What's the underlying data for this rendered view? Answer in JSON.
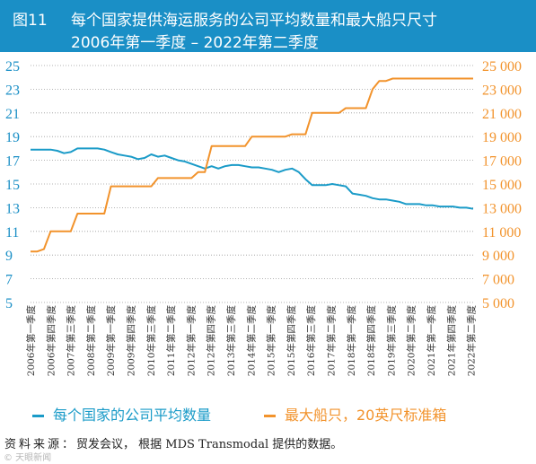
{
  "header": {
    "figure_label": "图11",
    "title_line1": "每个国家提供海运服务的公司平均数量和最大船只尺寸",
    "title_line2": "2006年第一季度 – 2022年第二季度",
    "bg_color": "#1a8fc6"
  },
  "chart_data": {
    "type": "line",
    "categories": [
      "2006年第一季度",
      "2006年第四季度",
      "2007年第三季度",
      "2008年第二季度",
      "2009年第一季度",
      "2009年第四季度",
      "2010年第三季度",
      "2011年第二季度",
      "2012年第一季度",
      "2012年第四季度",
      "2013年第三季度",
      "2014年第二季度",
      "2015年第一季度",
      "2015年第四季度",
      "2016年第三季度",
      "2017年第二季度",
      "2018年第一季度",
      "2018年第四季度",
      "2019年第三季度",
      "2020年第二季度",
      "2021年第一季度",
      "2021年第四季度",
      "2022年第二季度"
    ],
    "x": [
      0,
      1,
      2,
      3,
      4,
      5,
      6,
      7,
      8,
      9,
      10,
      11,
      12,
      13,
      14,
      15,
      16,
      17,
      18,
      19,
      20,
      21,
      22,
      23,
      24,
      25,
      26,
      27,
      28,
      29,
      30,
      31,
      32,
      33,
      34,
      35,
      36,
      37,
      38,
      39,
      40,
      41,
      42,
      43,
      44,
      45,
      46,
      47,
      48,
      49,
      50,
      51,
      52,
      53,
      54,
      55,
      56,
      57,
      58,
      59,
      60,
      61,
      62,
      63,
      64,
      65,
      66
    ],
    "series": [
      {
        "name": "每个国家的公司平均数量",
        "axis": "left",
        "color": "#1a9bc8",
        "values": [
          17.9,
          17.9,
          17.9,
          17.9,
          17.8,
          17.6,
          17.7,
          18.0,
          18.0,
          18.0,
          18.0,
          17.9,
          17.7,
          17.5,
          17.4,
          17.3,
          17.1,
          17.2,
          17.5,
          17.3,
          17.4,
          17.2,
          17.0,
          16.9,
          16.7,
          16.5,
          16.3,
          16.5,
          16.3,
          16.5,
          16.6,
          16.6,
          16.5,
          16.4,
          16.4,
          16.3,
          16.2,
          16.0,
          16.2,
          16.3,
          16.0,
          15.4,
          14.9,
          14.9,
          14.9,
          15.0,
          14.9,
          14.8,
          14.2,
          14.1,
          14.0,
          13.8,
          13.7,
          13.7,
          13.6,
          13.5,
          13.3,
          13.3,
          13.3,
          13.2,
          13.2,
          13.1,
          13.1,
          13.1,
          13.0,
          13.0,
          12.9
        ]
      },
      {
        "name": "最大船只，20英尺标准箱",
        "axis": "right",
        "color": "#f2932c",
        "values": [
          9300,
          9300,
          9500,
          11000,
          11000,
          11000,
          11000,
          12500,
          12500,
          12500,
          12500,
          12500,
          14800,
          14800,
          14800,
          14800,
          14800,
          14800,
          14800,
          15500,
          15500,
          15500,
          15500,
          15500,
          15500,
          16000,
          16000,
          18200,
          18200,
          18200,
          18200,
          18200,
          18200,
          19000,
          19000,
          19000,
          19000,
          19000,
          19000,
          19200,
          19200,
          19200,
          21000,
          21000,
          21000,
          21000,
          21000,
          21400,
          21400,
          21400,
          21400,
          23000,
          23700,
          23700,
          23900,
          23900,
          23900,
          23900,
          23900,
          23900,
          23900,
          23900,
          23900,
          23900,
          23900,
          23900,
          23900
        ]
      }
    ],
    "left_axis": {
      "ticks": [
        "25",
        "23",
        "21",
        "19",
        "17",
        "15",
        "13",
        "11",
        "9",
        "7",
        "5"
      ],
      "ylim": [
        5,
        25
      ]
    },
    "right_axis": {
      "ticks": [
        "25 000",
        "23 000",
        "21 000",
        "19 000",
        "17 000",
        "15 000",
        "13 000",
        "11 000",
        "9 000",
        "7 000",
        "5 000"
      ],
      "ylim": [
        5000,
        25000
      ]
    },
    "grid": "horizontal-dotted",
    "legend_position": "bottom"
  },
  "legend": {
    "items": [
      {
        "label": "每个国家的公司平均数量",
        "color": "#1a9bc8"
      },
      {
        "label": "最大船只，20英尺标准箱",
        "color": "#f2932c"
      }
    ]
  },
  "source": {
    "label": "资料来源：",
    "text": "贸发会议， 根据 MDS Transmodal 提供的数据。"
  },
  "watermark": "© 天眼新闻"
}
